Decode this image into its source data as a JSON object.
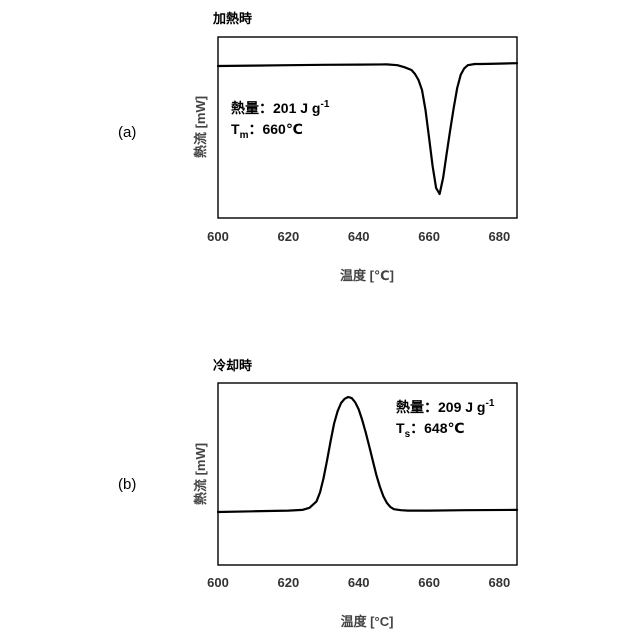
{
  "chart_data": [
    {
      "type": "line",
      "panel_label": "(a)",
      "title": "加熱時",
      "xlabel": "温度 [℃]",
      "ylabel": "熱流 [mW]",
      "xlim": [
        600,
        685
      ],
      "xticks": [
        "600",
        "620",
        "640",
        "660",
        "680"
      ],
      "annotation": {
        "line1_prefix": "熱量：201 J g",
        "line1_sup": "-1",
        "line2_main": "T",
        "line2_sub": "m",
        "line2_value": "：660℃"
      },
      "series": [
        {
          "x": [
            600,
            610,
            620,
            630,
            640,
            648,
            651,
            653,
            655,
            656,
            657,
            658,
            659,
            660,
            661,
            662,
            663,
            664,
            665,
            666,
            667,
            668,
            669,
            670,
            671,
            673,
            675,
            680,
            685
          ],
          "y": [
            0,
            0.01,
            0.02,
            0.03,
            0.035,
            0.04,
            0.02,
            -0.03,
            -0.1,
            -0.2,
            -0.35,
            -0.6,
            -1.1,
            -1.8,
            -2.5,
            -3.05,
            -3.2,
            -2.8,
            -2.2,
            -1.6,
            -1.05,
            -0.55,
            -0.22,
            -0.06,
            0.02,
            0.05,
            0.05,
            0.06,
            0.07
          ]
        }
      ]
    },
    {
      "type": "line",
      "panel_label": "(b)",
      "title": "冷却時",
      "xlabel": "温度 [°C]",
      "ylabel": "熱流 [mW]",
      "xlim": [
        600,
        685
      ],
      "xticks": [
        "600",
        "620",
        "640",
        "660",
        "680"
      ],
      "annotation": {
        "line1_prefix": "熱量：209 J g",
        "line1_sup": "-1",
        "line2_main": "T",
        "line2_sub": "s",
        "line2_value": "：648℃"
      },
      "series": [
        {
          "x": [
            600,
            610,
            620,
            624,
            626,
            628,
            629,
            630,
            631,
            632,
            633,
            634,
            635,
            636,
            637,
            638,
            639,
            640,
            641,
            642,
            643,
            644,
            645,
            646,
            647,
            648,
            649,
            650,
            652,
            654,
            660,
            670,
            685
          ],
          "y": [
            0,
            0.02,
            0.04,
            0.06,
            0.12,
            0.3,
            0.55,
            0.95,
            1.45,
            2.0,
            2.5,
            2.85,
            3.08,
            3.2,
            3.25,
            3.22,
            3.1,
            2.9,
            2.6,
            2.25,
            1.85,
            1.45,
            1.05,
            0.72,
            0.45,
            0.26,
            0.14,
            0.08,
            0.05,
            0.04,
            0.04,
            0.05,
            0.06
          ]
        }
      ]
    }
  ]
}
